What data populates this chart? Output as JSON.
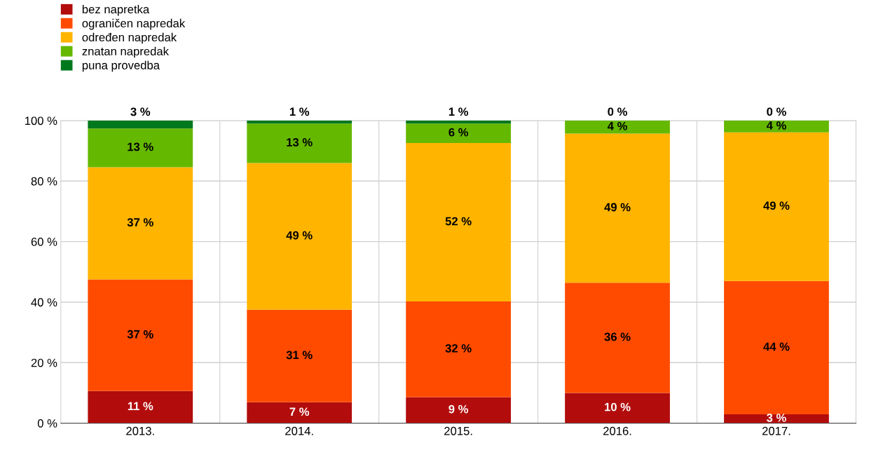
{
  "chart_data": {
    "type": "bar",
    "stacked": true,
    "categories": [
      "2013.",
      "2014.",
      "2015.",
      "2016.",
      "2017."
    ],
    "series": [
      {
        "name": "bez napretka",
        "color": "#b20c0c",
        "values": [
          10.6,
          6.9,
          8.6,
          10.0,
          2.9
        ],
        "value_labels": [
          "11 %",
          "7 %",
          "9 %",
          "10 %",
          "3 %"
        ]
      },
      {
        "name": "ograničen napredak",
        "color": "#ff4b00",
        "values": [
          36.9,
          30.6,
          31.6,
          36.4,
          44.1
        ],
        "value_labels": [
          "37 %",
          "31 %",
          "32 %",
          "36 %",
          "44 %"
        ]
      },
      {
        "name": "određen napredak",
        "color": "#ffb400",
        "values": [
          37.1,
          48.5,
          52.4,
          49.3,
          49.1
        ],
        "value_labels": [
          "37 %",
          "49 %",
          "52 %",
          "49 %",
          "49 %"
        ]
      },
      {
        "name": "znatan napredak",
        "color": "#65b800",
        "values": [
          12.8,
          13.0,
          6.4,
          4.3,
          3.9
        ],
        "value_labels": [
          "13 %",
          "13 %",
          "6 %",
          "4 %",
          "4 %"
        ]
      },
      {
        "name": "puna provedba",
        "color": "#00781e",
        "values": [
          2.6,
          1.0,
          1.0,
          0,
          0
        ],
        "value_labels": [
          "3 %",
          "1 %",
          "1 %",
          "0 %",
          "0 %"
        ]
      }
    ],
    "ylim": [
      0,
      100
    ],
    "yticks": [
      {
        "value": 0,
        "label": "0 %"
      },
      {
        "value": 20,
        "label": "20 %"
      },
      {
        "value": 40,
        "label": "40 %"
      },
      {
        "value": 60,
        "label": "60 %"
      },
      {
        "value": 80,
        "label": "80 %"
      },
      {
        "value": 100,
        "label": "100 %"
      }
    ],
    "grid": "y",
    "legend": "top left"
  }
}
